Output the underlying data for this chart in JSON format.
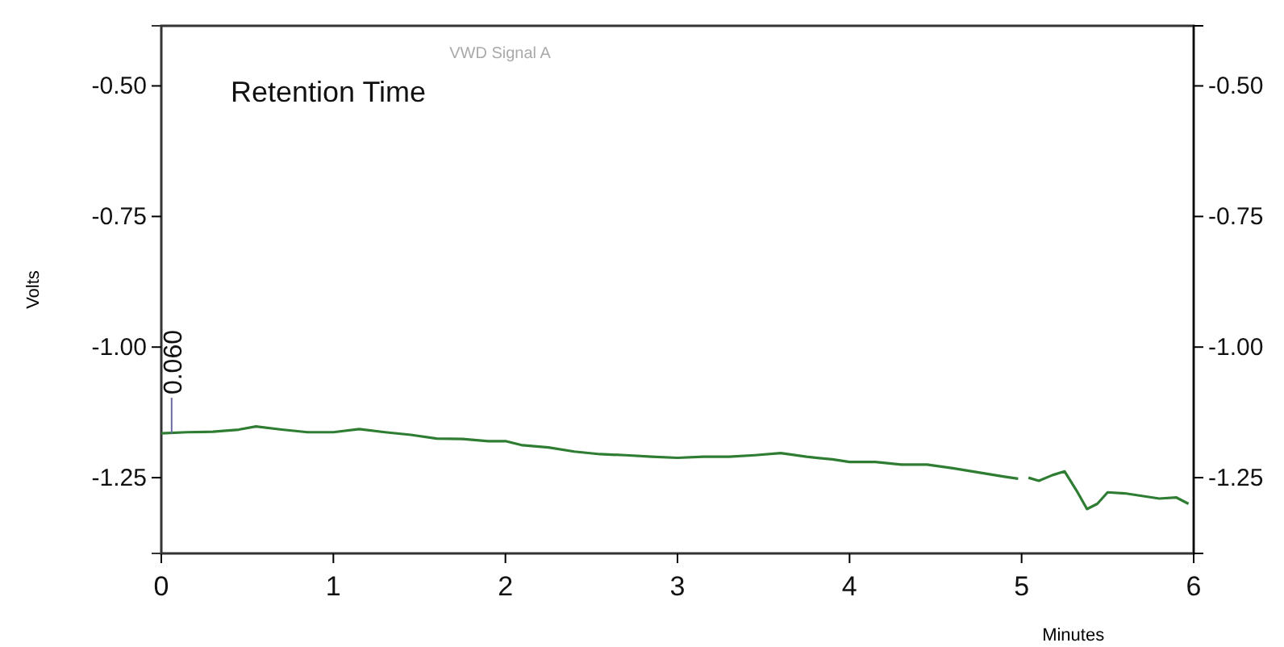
{
  "chart_data": {
    "type": "line",
    "title": "Retention Time",
    "subtitle": "VWD Signal A",
    "xlabel": "Minutes",
    "ylabel": "Volts",
    "x": [
      0,
      0.15,
      0.3,
      0.45,
      0.55,
      0.7,
      0.85,
      1.0,
      1.15,
      1.3,
      1.45,
      1.6,
      1.75,
      1.9,
      2.0,
      2.1,
      2.25,
      2.4,
      2.55,
      2.7,
      2.85,
      3.0,
      3.15,
      3.3,
      3.45,
      3.6,
      3.75,
      3.9,
      4.0,
      4.15,
      4.3,
      4.45,
      4.6,
      4.75,
      4.9,
      4.98,
      5.01,
      5.04,
      5.1,
      5.18,
      5.25,
      5.32,
      5.38,
      5.44,
      5.5,
      5.6,
      5.7,
      5.8,
      5.9,
      5.97
    ],
    "series": [
      {
        "color": "#2e7d32",
        "values": [
          -1.165,
          -1.163,
          -1.162,
          -1.158,
          -1.152,
          -1.158,
          -1.163,
          -1.163,
          -1.157,
          -1.163,
          -1.168,
          -1.175,
          -1.176,
          -1.18,
          -1.18,
          -1.188,
          -1.192,
          -1.2,
          -1.205,
          -1.207,
          -1.21,
          -1.212,
          -1.21,
          -1.21,
          -1.207,
          -1.203,
          -1.21,
          -1.215,
          -1.22,
          -1.22,
          -1.225,
          -1.225,
          -1.232,
          -1.24,
          -1.248,
          -1.252,
          null,
          -1.25,
          -1.256,
          -1.245,
          -1.238,
          -1.275,
          -1.31,
          -1.3,
          -1.278,
          -1.28,
          -1.285,
          -1.29,
          -1.288,
          -1.3
        ]
      }
    ],
    "xlim": [
      0,
      6
    ],
    "xticks": [
      0,
      1,
      2,
      3,
      4,
      5,
      6
    ],
    "ylim": [
      -1.395,
      -0.385
    ],
    "yticks": [
      {
        "value": -1.25,
        "label": "-1.25"
      },
      {
        "value": -1.0,
        "label": "-1.00"
      },
      {
        "value": -0.75,
        "label": "-0.75"
      },
      {
        "value": -0.5,
        "label": "-0.50"
      }
    ],
    "y2lim": [
      -1.395,
      -0.385
    ],
    "y2ticks": [
      {
        "value": -1.25,
        "label": "-1.25"
      },
      {
        "value": -1.0,
        "label": "-1.00"
      },
      {
        "value": -0.75,
        "label": "-0.75"
      },
      {
        "value": -0.5,
        "label": "-0.50"
      }
    ],
    "annotations": [
      {
        "text": "0.060",
        "x": 0.06,
        "y": -1.165
      }
    ],
    "marker": "none",
    "line_style": "solid"
  }
}
